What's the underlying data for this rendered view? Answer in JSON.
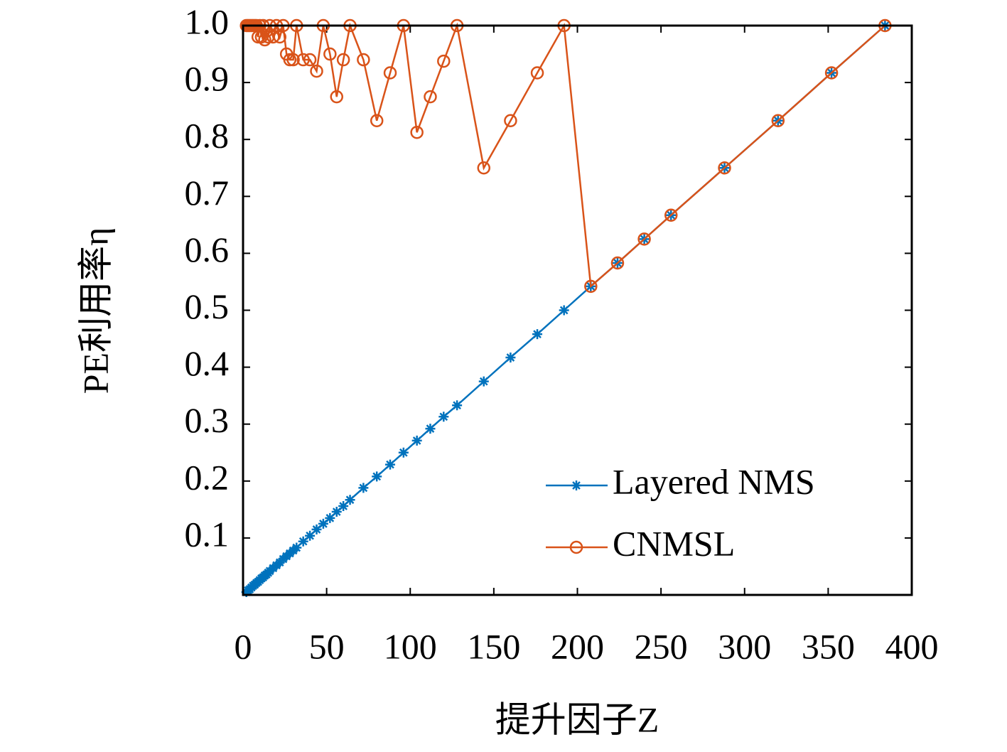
{
  "chart_data": {
    "type": "line",
    "x_label": "提升因子Z",
    "y_label": "PE利用率η",
    "x": [
      2,
      3,
      4,
      5,
      6,
      7,
      8,
      9,
      10,
      11,
      12,
      13,
      14,
      15,
      16,
      18,
      20,
      22,
      24,
      26,
      28,
      30,
      32,
      36,
      40,
      44,
      48,
      52,
      56,
      60,
      64,
      72,
      80,
      88,
      96,
      104,
      112,
      120,
      128,
      144,
      160,
      176,
      192,
      208,
      224,
      240,
      256,
      288,
      320,
      352,
      384
    ],
    "series": [
      {
        "name": "Layered NMS",
        "color": "#0072bd",
        "marker": "asterisk",
        "values": [
          0.005,
          0.008,
          0.01,
          0.013,
          0.016,
          0.018,
          0.021,
          0.023,
          0.026,
          0.029,
          0.031,
          0.034,
          0.036,
          0.039,
          0.042,
          0.047,
          0.052,
          0.057,
          0.063,
          0.068,
          0.073,
          0.078,
          0.083,
          0.094,
          0.104,
          0.115,
          0.125,
          0.135,
          0.146,
          0.156,
          0.167,
          0.188,
          0.208,
          0.229,
          0.25,
          0.271,
          0.292,
          0.313,
          0.333,
          0.375,
          0.417,
          0.458,
          0.5,
          0.542,
          0.583,
          0.625,
          0.667,
          0.75,
          0.833,
          0.917,
          1.0
        ]
      },
      {
        "name": "CNMSL",
        "color": "#d95319",
        "marker": "circle",
        "values": [
          1,
          1,
          1,
          1,
          1,
          1,
          1,
          0.98,
          1,
          0.98,
          1,
          0.975,
          0.99,
          0.98,
          1,
          0.98,
          1,
          0.98,
          1,
          0.95,
          0.94,
          0.94,
          1,
          0.94,
          0.94,
          0.92,
          1,
          0.95,
          0.875,
          0.94,
          1,
          0.94,
          0.833,
          0.917,
          1,
          0.8125,
          0.875,
          0.9375,
          1,
          0.75,
          0.833,
          0.917,
          1,
          0.542,
          0.583,
          0.625,
          0.667,
          0.75,
          0.833,
          0.917,
          1.0
        ]
      }
    ],
    "xlim": [
      0,
      400
    ],
    "xticks": [
      0,
      50,
      100,
      150,
      200,
      250,
      300,
      350,
      400
    ],
    "ylim": [
      0,
      1
    ],
    "yticks": [
      0.1,
      0.2,
      0.3,
      0.4,
      0.5,
      0.6,
      0.7,
      0.8,
      0.9,
      {
        "value": 1,
        "label": "1.0"
      }
    ],
    "legend": "lower-right"
  }
}
